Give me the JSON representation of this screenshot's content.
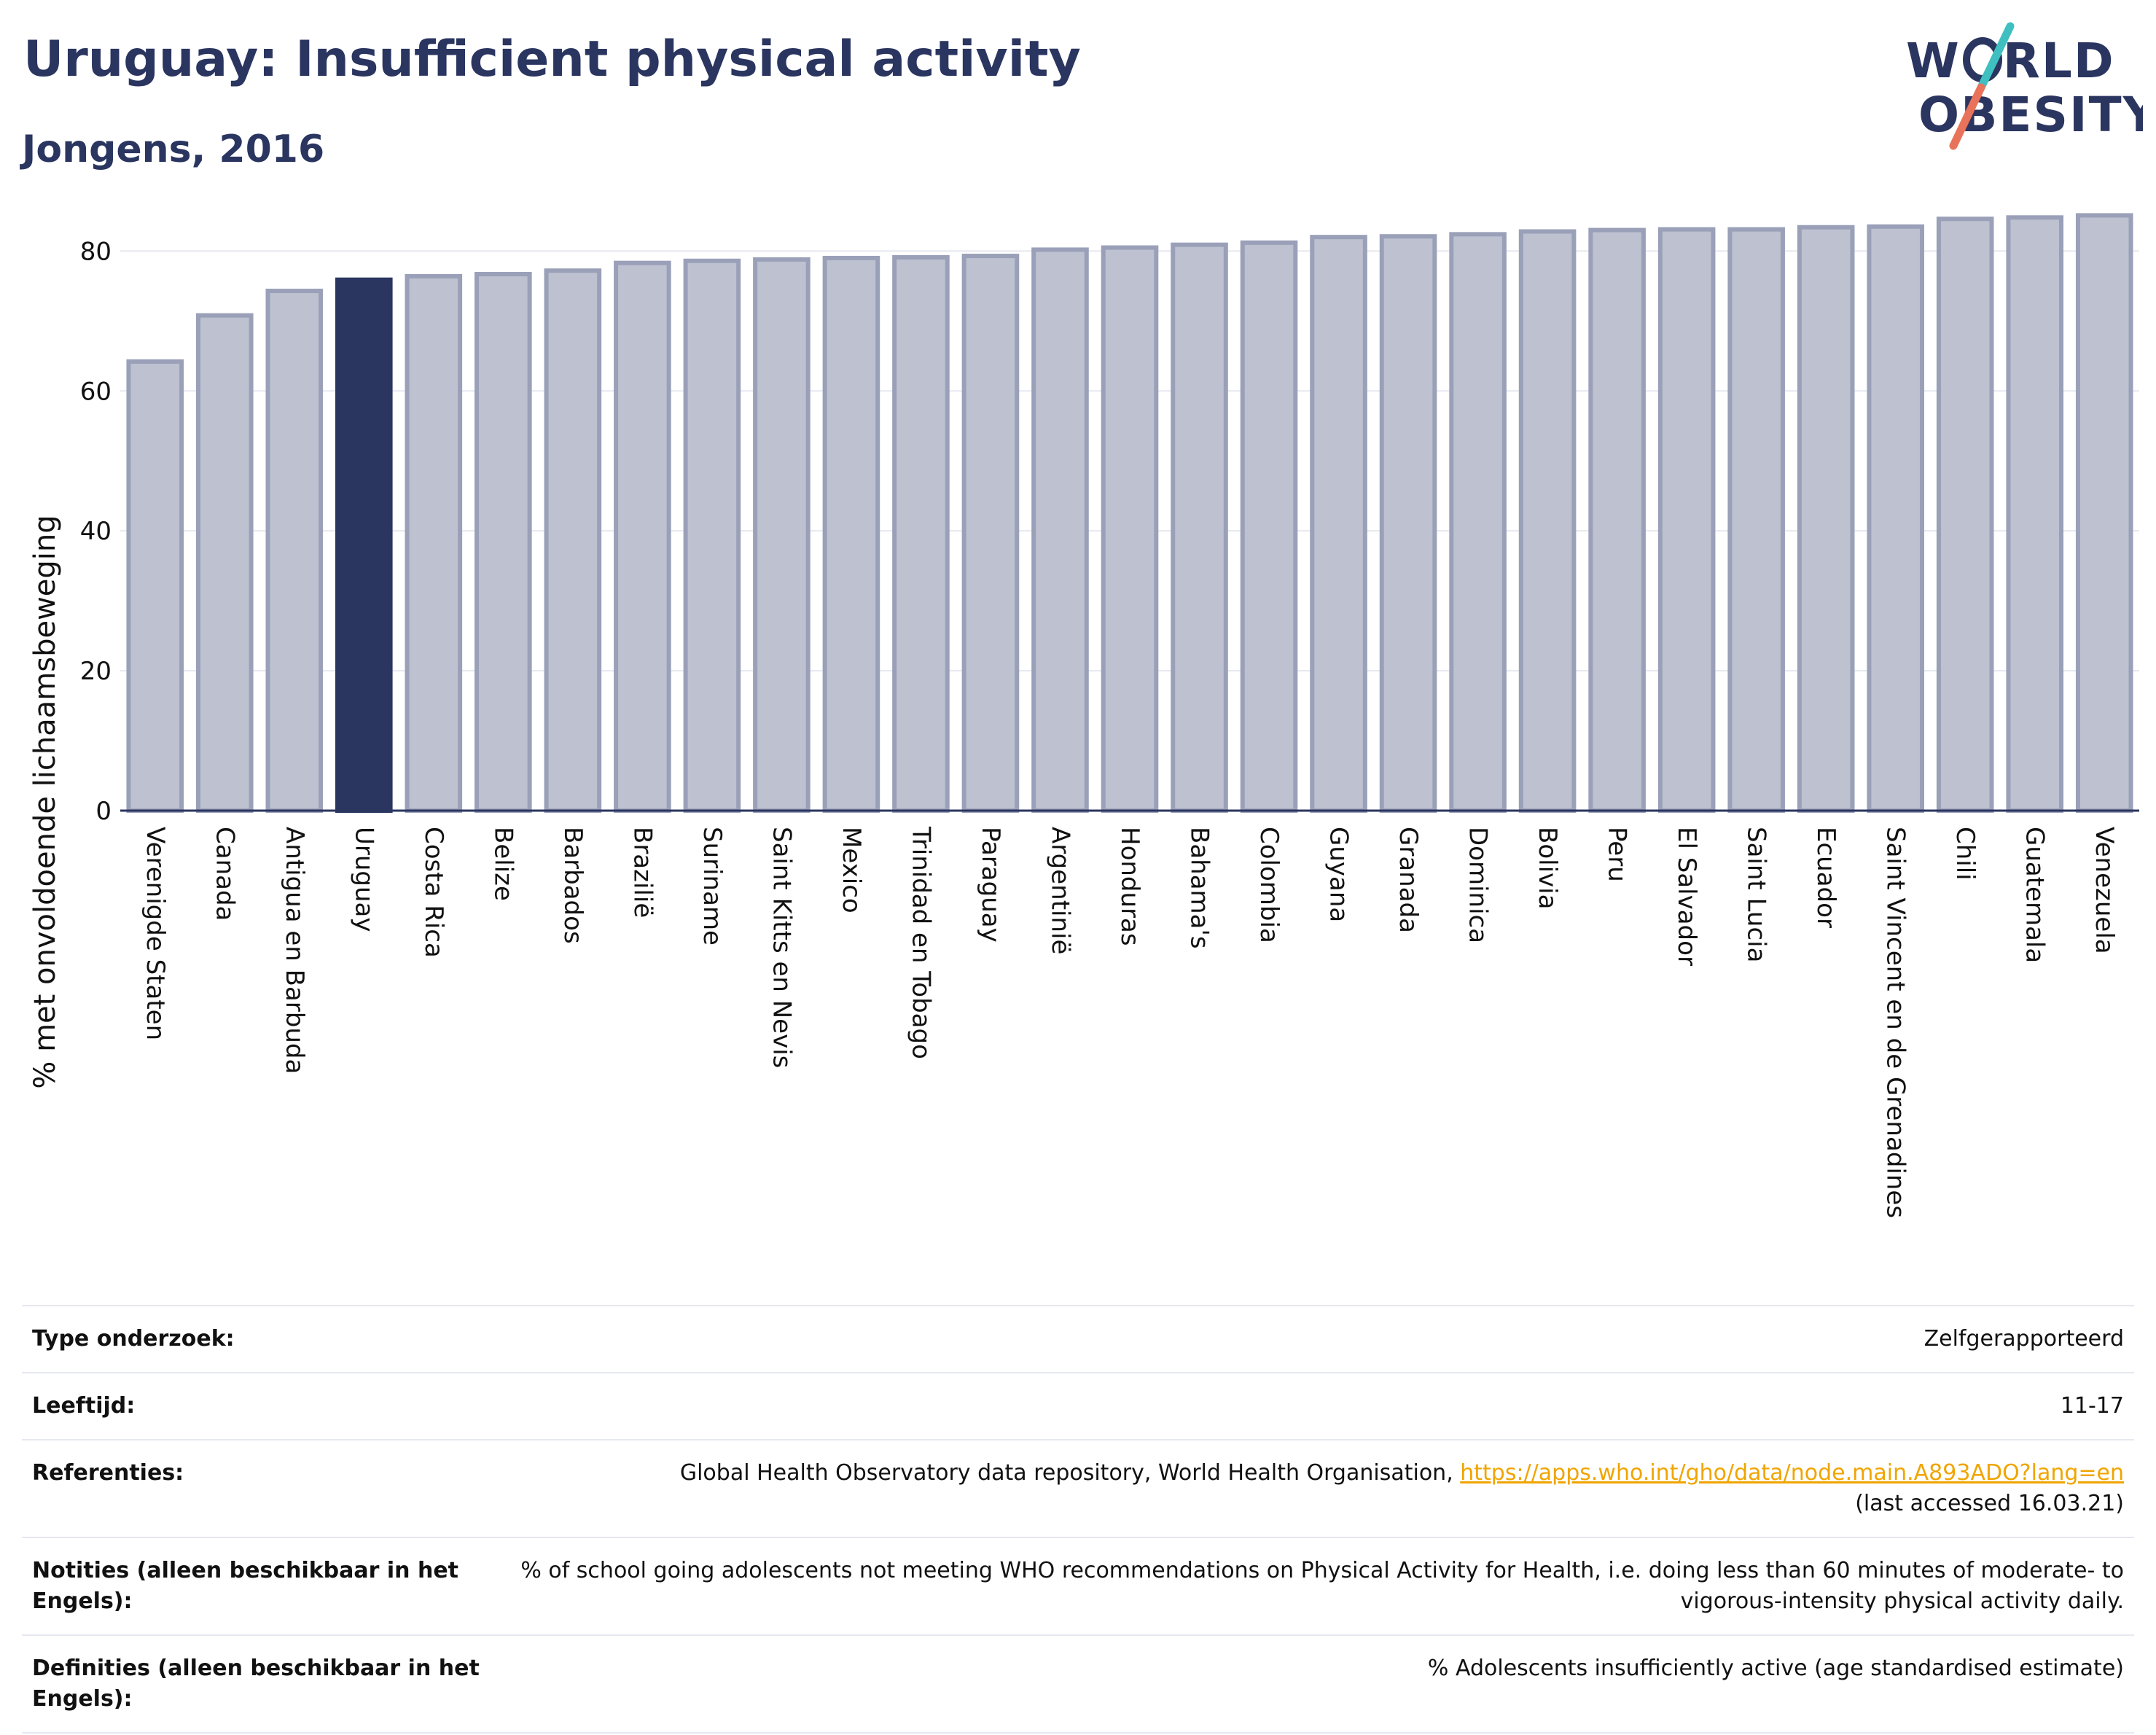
{
  "header": {
    "title": "Uruguay: Insufficient physical activity",
    "subtitle": "Jongens, 2016"
  },
  "logo": {
    "line1": "W RLD",
    "line2": "OBESITY",
    "name": "World Obesity logo",
    "colors": {
      "text": "#2a3560",
      "slash_teal": "#3fbfbf",
      "slash_coral": "#e8735a"
    }
  },
  "colors": {
    "highlight": "#2a3560",
    "bar": "#bdc1d0",
    "bar_edge": "#9aa0b8",
    "grid": "#e6e8f0"
  },
  "chart_data": {
    "type": "bar",
    "ylabel": "% met onvoldoende lichaamsbeweging",
    "xlabel": "",
    "ylim": [
      0,
      89
    ],
    "yticks": [
      0,
      20,
      40,
      60,
      80
    ],
    "grid": true,
    "highlight": "Uruguay",
    "categories": [
      "Verenigde Staten",
      "Canada",
      "Antigua en Barbuda",
      "Uruguay",
      "Costa Rica",
      "Belize",
      "Barbados",
      "Brazilië",
      "Suriname",
      "Saint Kitts en Nevis",
      "Mexico",
      "Trinidad en Tobago",
      "Paraguay",
      "Argentinië",
      "Honduras",
      "Bahama's",
      "Colombia",
      "Guyana",
      "Granada",
      "Dominica",
      "Bolivia",
      "Peru",
      "El Salvador",
      "Saint Lucia",
      "Ecuador",
      "Saint Vincent en de Grenadines",
      "Chili",
      "Guatemala",
      "Venezuela"
    ],
    "values": [
      64.2,
      70.8,
      74.3,
      75.9,
      76.4,
      76.7,
      77.2,
      78.3,
      78.6,
      78.8,
      79.0,
      79.1,
      79.3,
      80.2,
      80.5,
      80.9,
      81.2,
      82.0,
      82.1,
      82.4,
      82.8,
      83.0,
      83.1,
      83.1,
      83.4,
      83.5,
      84.6,
      84.8,
      85.1
    ]
  },
  "meta": [
    {
      "key": "Type onderzoek:",
      "value": "Zelfgerapporteerd"
    },
    {
      "key": "Leeftijd:",
      "value": "11-17"
    },
    {
      "key": "Referenties:",
      "value": "Global Health Observatory data repository, World Health Organisation, ",
      "link": "https://apps.who.int/gho/data/node.main.A893ADO?lang=en",
      "value2": "(last accessed 16.03.21)"
    },
    {
      "key": "Notities (alleen beschikbaar in het Engels):",
      "value": "% of school going adolescents not meeting WHO recommendations on Physical Activity for Health, i.e. doing less than 60 minutes of moderate- to vigorous-intensity physical activity daily."
    },
    {
      "key": "Definities (alleen beschikbaar in het Engels):",
      "value": "% Adolescents insufficiently active (age standardised estimate)"
    }
  ]
}
